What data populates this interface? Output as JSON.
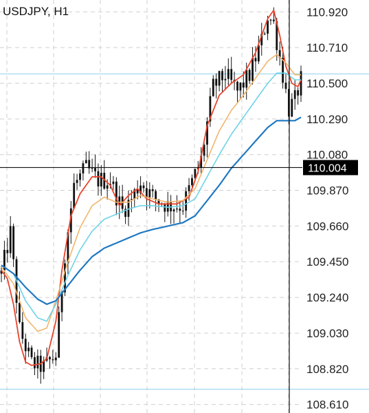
{
  "chart_title": "USDJPY, H1",
  "colors": {
    "background": "#ffffff",
    "grid": "#cfcfcf",
    "candle": "#111111",
    "ma_fast": "#e8442c",
    "ma_mid": "#f2b56b",
    "ma_slow": "#6dd3e6",
    "ma_long": "#1f78c1",
    "horizontal_line": "#8fd0ec",
    "crosshair": "#111111",
    "price_tag_bg": "#000000",
    "price_tag_text": "#ffffff"
  },
  "chart_data": {
    "type": "candlestick",
    "symbol": "USDJPY",
    "timeframe": "H1",
    "ylim": [
      108.56,
      110.99
    ],
    "y_ticks": [
      "110.920",
      "110.710",
      "110.500",
      "110.290",
      "110.080",
      "109.870",
      "109.660",
      "109.450",
      "109.240",
      "109.030",
      "108.820",
      "108.610"
    ],
    "current_price": "110.004",
    "horizontal_lines": [
      110.555,
      108.7
    ],
    "grid": true,
    "bar_count": 100,
    "close_path": [
      [
        0,
        109.38
      ],
      [
        3,
        109.62
      ],
      [
        6,
        109.05
      ],
      [
        10,
        108.85
      ],
      [
        14,
        108.83
      ],
      [
        18,
        108.9
      ],
      [
        21,
        109.5
      ],
      [
        24,
        109.9
      ],
      [
        28,
        110.0
      ],
      [
        32,
        109.93
      ],
      [
        36,
        109.93
      ],
      [
        40,
        109.75
      ],
      [
        43,
        109.82
      ],
      [
        46,
        109.92
      ],
      [
        50,
        109.83
      ],
      [
        55,
        109.78
      ],
      [
        60,
        109.78
      ],
      [
        63,
        109.92
      ],
      [
        66,
        110.05
      ],
      [
        70,
        110.48
      ],
      [
        74,
        110.55
      ],
      [
        78,
        110.45
      ],
      [
        82,
        110.55
      ],
      [
        86,
        110.75
      ],
      [
        88,
        110.9
      ],
      [
        90,
        110.85
      ],
      [
        92,
        110.65
      ],
      [
        95,
        110.35
      ],
      [
        97,
        110.4
      ],
      [
        99,
        110.52
      ]
    ],
    "series": [
      {
        "key": "ma_fast",
        "values": [
          [
            0,
            109.4
          ],
          [
            2,
            109.35
          ],
          [
            4,
            109.2
          ],
          [
            6,
            108.98
          ],
          [
            8,
            108.86
          ],
          [
            10,
            108.84
          ],
          [
            13,
            108.85
          ],
          [
            15,
            108.88
          ],
          [
            18,
            109.1
          ],
          [
            20,
            109.4
          ],
          [
            23,
            109.72
          ],
          [
            26,
            109.85
          ],
          [
            30,
            109.95
          ],
          [
            33,
            109.95
          ],
          [
            36,
            109.9
          ],
          [
            39,
            109.78
          ],
          [
            42,
            109.84
          ],
          [
            45,
            109.88
          ],
          [
            48,
            109.82
          ],
          [
            52,
            109.79
          ],
          [
            58,
            109.79
          ],
          [
            62,
            109.83
          ],
          [
            65,
            109.98
          ],
          [
            68,
            110.25
          ],
          [
            72,
            110.43
          ],
          [
            76,
            110.5
          ],
          [
            80,
            110.55
          ],
          [
            84,
            110.68
          ],
          [
            88,
            110.88
          ],
          [
            90,
            110.93
          ],
          [
            92,
            110.78
          ],
          [
            94,
            110.6
          ],
          [
            96,
            110.5
          ],
          [
            98,
            110.48
          ],
          [
            99,
            110.52
          ]
        ]
      },
      {
        "key": "ma_mid",
        "values": [
          [
            0,
            109.42
          ],
          [
            4,
            109.32
          ],
          [
            8,
            109.12
          ],
          [
            12,
            109.04
          ],
          [
            15,
            109.06
          ],
          [
            18,
            109.22
          ],
          [
            22,
            109.45
          ],
          [
            26,
            109.65
          ],
          [
            30,
            109.78
          ],
          [
            34,
            109.83
          ],
          [
            38,
            109.8
          ],
          [
            42,
            109.8
          ],
          [
            46,
            109.84
          ],
          [
            50,
            109.82
          ],
          [
            55,
            109.8
          ],
          [
            60,
            109.81
          ],
          [
            64,
            109.88
          ],
          [
            68,
            110.05
          ],
          [
            72,
            110.22
          ],
          [
            76,
            110.34
          ],
          [
            80,
            110.43
          ],
          [
            84,
            110.53
          ],
          [
            88,
            110.63
          ],
          [
            91,
            110.67
          ],
          [
            94,
            110.62
          ],
          [
            97,
            110.55
          ],
          [
            99,
            110.55
          ]
        ]
      },
      {
        "key": "ma_slow",
        "values": [
          [
            0,
            109.43
          ],
          [
            4,
            109.38
          ],
          [
            8,
            109.22
          ],
          [
            12,
            109.12
          ],
          [
            15,
            109.1
          ],
          [
            18,
            109.2
          ],
          [
            22,
            109.37
          ],
          [
            26,
            109.52
          ],
          [
            30,
            109.63
          ],
          [
            34,
            109.7
          ],
          [
            38,
            109.73
          ],
          [
            42,
            109.76
          ],
          [
            46,
            109.78
          ],
          [
            50,
            109.78
          ],
          [
            55,
            109.77
          ],
          [
            60,
            109.78
          ],
          [
            64,
            109.82
          ],
          [
            68,
            109.95
          ],
          [
            72,
            110.08
          ],
          [
            76,
            110.2
          ],
          [
            80,
            110.3
          ],
          [
            84,
            110.4
          ],
          [
            88,
            110.5
          ],
          [
            91,
            110.56
          ],
          [
            94,
            110.56
          ],
          [
            97,
            110.52
          ],
          [
            99,
            110.52
          ]
        ]
      },
      {
        "key": "ma_long",
        "values": [
          [
            0,
            109.43
          ],
          [
            4,
            109.38
          ],
          [
            8,
            109.3
          ],
          [
            12,
            109.23
          ],
          [
            15,
            109.2
          ],
          [
            18,
            109.22
          ],
          [
            22,
            109.31
          ],
          [
            26,
            109.4
          ],
          [
            30,
            109.48
          ],
          [
            34,
            109.53
          ],
          [
            38,
            109.56
          ],
          [
            42,
            109.59
          ],
          [
            46,
            109.62
          ],
          [
            50,
            109.64
          ],
          [
            55,
            109.66
          ],
          [
            60,
            109.68
          ],
          [
            64,
            109.72
          ],
          [
            68,
            109.81
          ],
          [
            72,
            109.9
          ],
          [
            76,
            110.0
          ],
          [
            80,
            110.08
          ],
          [
            84,
            110.16
          ],
          [
            88,
            110.24
          ],
          [
            91,
            110.28
          ],
          [
            94,
            110.28
          ],
          [
            97,
            110.28
          ],
          [
            99,
            110.3
          ]
        ]
      }
    ]
  }
}
